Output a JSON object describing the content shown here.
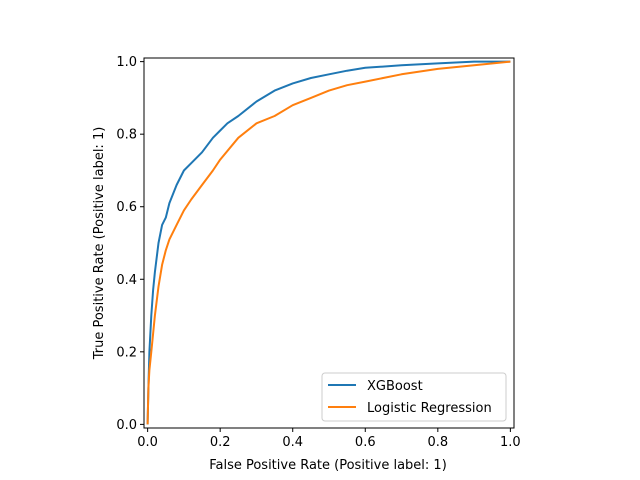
{
  "chart_data": {
    "type": "line",
    "xlabel": "False Positive Rate (Positive label: 1)",
    "ylabel": "True Positive Rate (Positive label: 1)",
    "xlim": [
      -0.01,
      1.01
    ],
    "ylim": [
      -0.01,
      1.01
    ],
    "x_ticks": [
      "0.0",
      "0.2",
      "0.4",
      "0.6",
      "0.8",
      "1.0"
    ],
    "y_ticks": [
      "0.0",
      "0.2",
      "0.4",
      "0.6",
      "0.8",
      "1.0"
    ],
    "grid": false,
    "legend_position": "bottom-right",
    "series": [
      {
        "name": "XGBoost",
        "color": "#1f77b4",
        "x": [
          0,
          0.002,
          0.005,
          0.01,
          0.015,
          0.02,
          0.03,
          0.04,
          0.05,
          0.06,
          0.08,
          0.1,
          0.12,
          0.15,
          0.18,
          0.2,
          0.22,
          0.25,
          0.3,
          0.35,
          0.4,
          0.45,
          0.5,
          0.55,
          0.6,
          0.7,
          0.8,
          0.9,
          1.0
        ],
        "y": [
          0,
          0.1,
          0.2,
          0.3,
          0.37,
          0.42,
          0.5,
          0.55,
          0.57,
          0.61,
          0.66,
          0.7,
          0.72,
          0.75,
          0.79,
          0.81,
          0.83,
          0.85,
          0.89,
          0.92,
          0.94,
          0.955,
          0.965,
          0.975,
          0.983,
          0.99,
          0.995,
          1.0,
          1.0
        ]
      },
      {
        "name": "Logistic Regression",
        "color": "#ff7f0e",
        "x": [
          0,
          0.002,
          0.005,
          0.01,
          0.015,
          0.02,
          0.03,
          0.04,
          0.05,
          0.06,
          0.08,
          0.1,
          0.12,
          0.15,
          0.18,
          0.2,
          0.25,
          0.3,
          0.35,
          0.4,
          0.45,
          0.5,
          0.55,
          0.6,
          0.7,
          0.8,
          0.9,
          1.0
        ],
        "y": [
          0,
          0.1,
          0.15,
          0.2,
          0.25,
          0.3,
          0.38,
          0.44,
          0.48,
          0.51,
          0.55,
          0.59,
          0.62,
          0.66,
          0.7,
          0.73,
          0.79,
          0.83,
          0.85,
          0.88,
          0.9,
          0.92,
          0.935,
          0.945,
          0.965,
          0.98,
          0.99,
          1.0
        ]
      }
    ]
  }
}
